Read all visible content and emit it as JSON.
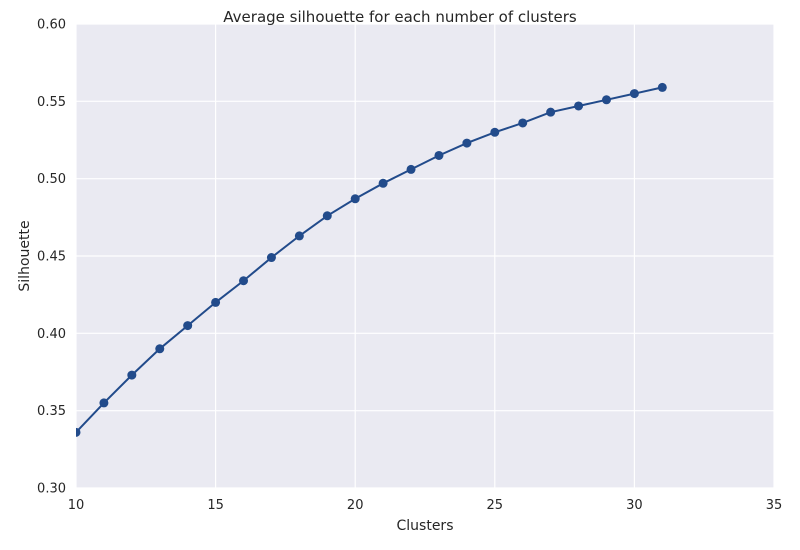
{
  "chart_data": {
    "type": "line",
    "title": "Average silhouette for each number of clusters",
    "xlabel": "Clusters",
    "ylabel": "Silhouette",
    "xlim": [
      10,
      35
    ],
    "ylim": [
      0.3,
      0.6
    ],
    "xticks": [
      "10",
      "15",
      "20",
      "25",
      "30",
      "35"
    ],
    "yticks": [
      "0.30",
      "0.35",
      "0.40",
      "0.45",
      "0.50",
      "0.55",
      "0.60"
    ],
    "grid": true,
    "series": [
      {
        "color": "#224b8b",
        "x": [
          10,
          11,
          12,
          13,
          14,
          15,
          16,
          17,
          18,
          19,
          20,
          21,
          22,
          23,
          24,
          25,
          26,
          27,
          28,
          29,
          30,
          31
        ],
        "y": [
          0.336,
          0.355,
          0.373,
          0.39,
          0.405,
          0.42,
          0.434,
          0.449,
          0.463,
          0.476,
          0.487,
          0.497,
          0.506,
          0.515,
          0.523,
          0.53,
          0.536,
          0.543,
          0.547,
          0.551,
          0.555,
          0.559
        ]
      }
    ],
    "plot_background": "#eaeaf2",
    "grid_color": "#ffffff"
  }
}
